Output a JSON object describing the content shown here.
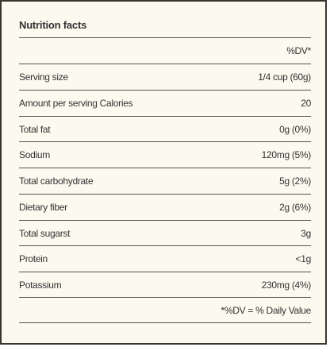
{
  "title": "Nutrition facts",
  "header_dv": "%DV*",
  "rows": [
    {
      "label": "Serving size",
      "value": "1/4 cup (60g)"
    },
    {
      "label": "Amount per serving Calories",
      "value": "20"
    },
    {
      "label": "Total fat",
      "value": "0g (0%)"
    },
    {
      "label": "Sodium",
      "value": "120mg (5%)"
    },
    {
      "label": "Total carbohydrate",
      "value": "5g (2%)"
    },
    {
      "label": "Dietary fiber",
      "value": "2g (6%)"
    },
    {
      "label": "Total sugarst",
      "value": "3g"
    },
    {
      "label": "Protein",
      "value": "<1g"
    },
    {
      "label": "Potassium",
      "value": "230mg (4%)"
    }
  ],
  "footnote": "*%DV = % Daily Value"
}
